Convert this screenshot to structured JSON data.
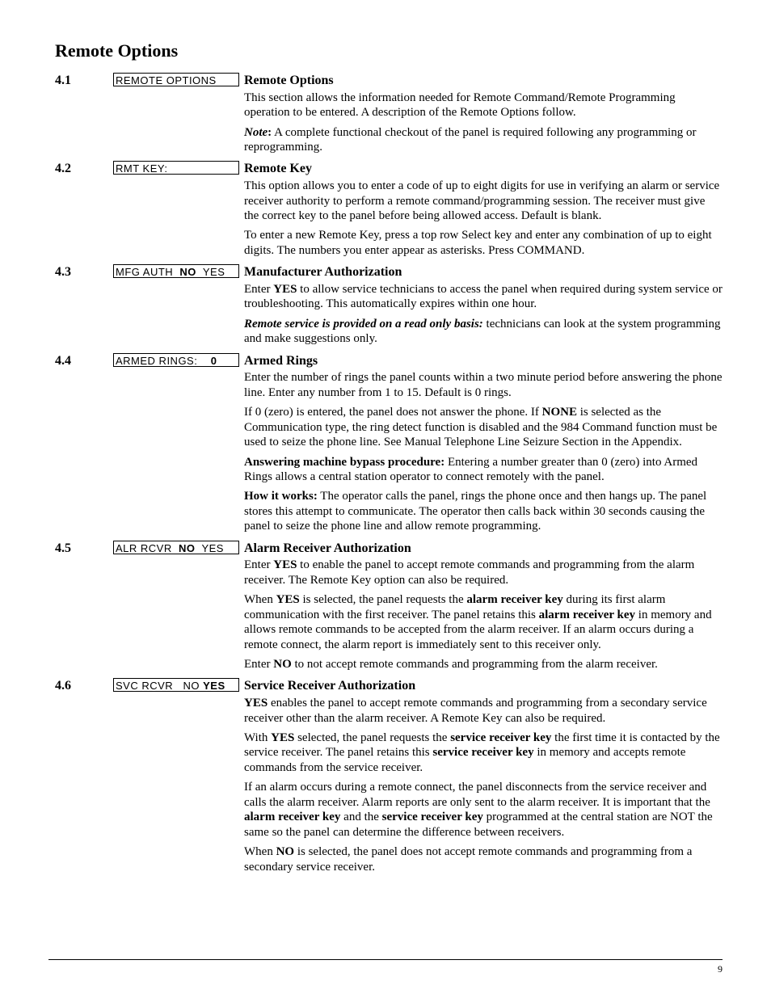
{
  "page_title": "Remote Options",
  "page_number": "9",
  "sections": [
    {
      "num": "4.1",
      "lcd": "REMOTE OPTIONS",
      "title": "Remote Options",
      "paras": [
        "This section allows the information needed for Remote Command/Remote Programming operation to be entered. A description of the Remote Options follow.",
        "<b><i>Note</i>:</b> A complete functional checkout of the panel is required following any programming or reprogramming."
      ]
    },
    {
      "num": "4.2",
      "lcd": "RMT KEY:",
      "title": "Remote Key",
      "paras": [
        "This option allows you to enter a code of up to eight digits for use in verifying an alarm or service receiver authority to perform a remote command/programming session. The receiver must give the correct key to the panel before being allowed access. Default is blank.",
        "To enter a new Remote Key, press a top row Select key and enter any combination of up to eight digits. The numbers you enter appear as asterisks. Press COMMAND."
      ]
    },
    {
      "num": "4.3",
      "lcd": "MFG AUTH  <b>NO</b>  YES",
      "title": "Manufacturer Authorization",
      "paras": [
        "Enter <b>YES</b> to allow service technicians to access the panel when required during system service or troubleshooting. This automatically expires within one hour.",
        "<b><i>Remote service is provided on a read only basis:</i></b> technicians can look at the system programming and make suggestions only."
      ]
    },
    {
      "num": "4.4",
      "lcd": "ARMED RINGS:    <b>0</b>",
      "title": "Armed Rings",
      "paras": [
        "Enter the number of rings the panel counts within a two minute period before answering the phone line. Enter any number from 1 to 15.  Default is 0 rings.",
        "If 0 (zero) is entered, the panel does not answer the phone. If <b>NONE</b> is selected as the Communication type, the ring detect function is disabled and the 984 Command function must be used to seize the phone line. See Manual Telephone Line Seizure Section in the Appendix.",
        "<b>Answering machine bypass procedure:</b> Entering a number greater than 0 (zero) into Armed Rings allows a central station operator to connect remotely with the panel.",
        "<b>How it works:</b> The operator calls the panel, rings the phone once and then hangs up. The panel stores this attempt to communicate. The operator then calls back within 30 seconds causing the panel to seize the phone line and allow remote programming."
      ]
    },
    {
      "num": "4.5",
      "lcd": "ALR RCVR  <b>NO</b>  YES",
      "title": "Alarm Receiver Authorization",
      "paras": [
        "Enter <b>YES</b> to enable the panel to accept remote commands and programming from the alarm receiver. The Remote Key option can also be required.",
        "When <b>YES</b> is selected, the panel requests the <b>alarm receiver key</b> during its first alarm communication with the first receiver. The panel retains this <b>alarm receiver key</b> in memory and allows remote commands to be accepted from the alarm receiver. If an alarm occurs during a remote connect, the alarm report is immediately sent to this receiver only.",
        "Enter <b>NO</b> to not accept remote commands and programming from the alarm receiver."
      ]
    },
    {
      "num": "4.6",
      "lcd": "SVC RCVR   NO <b>YES</b>",
      "title": "Service Receiver Authorization",
      "paras": [
        "<b>YES</b> enables the panel to accept remote commands and programming from a secondary service receiver other than the alarm receiver. A Remote Key can also be required.",
        "With <b>YES</b> selected, the panel requests the <b>service receiver key</b> the first time it is contacted by the service receiver. The panel retains this <b>service receiver key</b> in memory and accepts remote commands from the service receiver.",
        "If an alarm occurs during a remote connect, the panel disconnects from the service receiver and calls the alarm receiver. Alarm reports are only sent to the alarm receiver. It is important that the <b>alarm receiver key</b> and the <b>service receiver key</b> programmed at the central station are NOT the same so the panel can determine the difference between receivers.",
        "When <b>NO</b> is selected, the panel does not accept remote commands and programming from a secondary service receiver."
      ]
    }
  ]
}
